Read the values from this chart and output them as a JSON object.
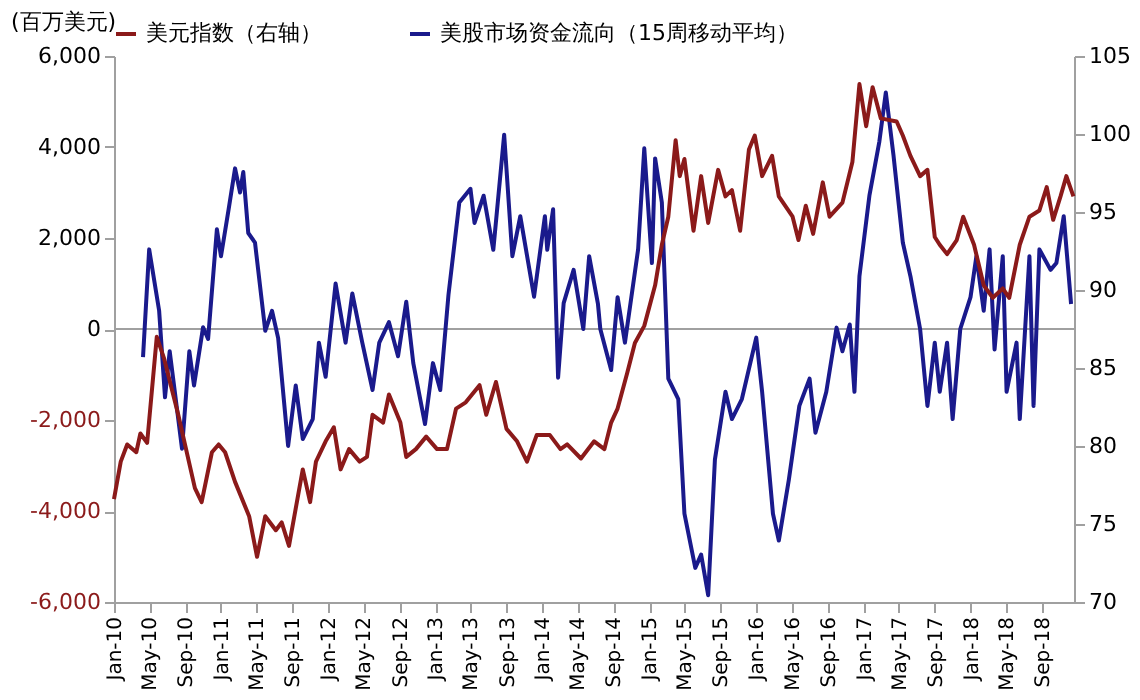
{
  "chart_data": {
    "type": "line",
    "ylabel": "(百万美元)",
    "legend": "top",
    "grid": false,
    "marker": "none",
    "line_style": "solid",
    "xlim": [
      "2010-01-01",
      "2018-12-20"
    ],
    "xticks": [
      {
        "value": "2010-01-01",
        "label": "Jan-10"
      },
      {
        "value": "2010-05-01",
        "label": "May-10"
      },
      {
        "value": "2010-09-01",
        "label": "Sep-10"
      },
      {
        "value": "2011-01-01",
        "label": "Jan-11"
      },
      {
        "value": "2011-05-01",
        "label": "May-11"
      },
      {
        "value": "2011-09-01",
        "label": "Sep-11"
      },
      {
        "value": "2012-01-01",
        "label": "Jan-12"
      },
      {
        "value": "2012-05-01",
        "label": "May-12"
      },
      {
        "value": "2012-09-01",
        "label": "Sep-12"
      },
      {
        "value": "2013-01-01",
        "label": "Jan-13"
      },
      {
        "value": "2013-05-01",
        "label": "May-13"
      },
      {
        "value": "2013-09-01",
        "label": "Sep-13"
      },
      {
        "value": "2014-01-01",
        "label": "Jan-14"
      },
      {
        "value": "2014-05-01",
        "label": "May-14"
      },
      {
        "value": "2014-09-01",
        "label": "Sep-14"
      },
      {
        "value": "2015-01-01",
        "label": "Jan-15"
      },
      {
        "value": "2015-05-01",
        "label": "May-15"
      },
      {
        "value": "2015-09-01",
        "label": "Sep-15"
      },
      {
        "value": "2016-01-01",
        "label": "Jan-16"
      },
      {
        "value": "2016-05-01",
        "label": "May-16"
      },
      {
        "value": "2016-09-01",
        "label": "Sep-16"
      },
      {
        "value": "2017-01-01",
        "label": "Jan-17"
      },
      {
        "value": "2017-05-01",
        "label": "May-17"
      },
      {
        "value": "2017-09-01",
        "label": "Sep-17"
      },
      {
        "value": "2018-01-01",
        "label": "Jan-18"
      },
      {
        "value": "2018-05-01",
        "label": "May-18"
      },
      {
        "value": "2018-09-01",
        "label": "Sep-18"
      }
    ],
    "ylim": [
      -6000,
      6000
    ],
    "yticks": [
      {
        "value": -6000,
        "label": "-6,000"
      },
      {
        "value": -4000,
        "label": "-4,000"
      },
      {
        "value": -2000,
        "label": "-2,000"
      },
      0,
      {
        "value": 2000,
        "label": "2,000"
      },
      {
        "value": 4000,
        "label": "4,000"
      },
      {
        "value": 6000,
        "label": "6,000"
      }
    ],
    "y2lim": [
      70,
      105
    ],
    "y2ticks": [
      70,
      75,
      80,
      85,
      90,
      95,
      100,
      105
    ],
    "ref_lines": [
      {
        "axis": "y",
        "value": 0,
        "color": "#a0a0a0"
      }
    ],
    "series": [
      {
        "name": "美元指数（右轴）",
        "color": "#8b1a1a",
        "axis": "y2",
        "x": [
          "2010-01-01",
          "2010-01-24",
          "2010-02-15",
          "2010-03-18",
          "2010-04-01",
          "2010-04-24",
          "2010-05-27",
          "2010-06-21",
          "2010-08-07",
          "2010-10-04",
          "2010-10-27",
          "2010-12-01",
          "2010-12-24",
          "2011-01-15",
          "2011-02-18",
          "2011-04-07",
          "2011-05-04",
          "2011-06-01",
          "2011-07-07",
          "2011-07-27",
          "2011-08-21",
          "2011-10-07",
          "2011-11-01",
          "2011-11-21",
          "2011-12-24",
          "2012-01-21",
          "2012-02-13",
          "2012-03-13",
          "2012-04-18",
          "2012-05-13",
          "2012-06-01",
          "2012-07-07",
          "2012-07-27",
          "2012-09-04",
          "2012-09-24",
          "2012-10-27",
          "2012-12-01",
          "2013-01-07",
          "2013-02-10",
          "2013-03-13",
          "2013-04-15",
          "2013-06-01",
          "2013-06-24",
          "2013-07-27",
          "2013-09-01",
          "2013-10-07",
          "2013-11-10",
          "2013-12-13",
          "2014-01-27",
          "2014-03-04",
          "2014-03-27",
          "2014-05-13",
          "2014-06-27",
          "2014-08-01",
          "2014-08-24",
          "2014-09-15",
          "2014-10-18",
          "2014-11-13",
          "2014-12-15",
          "2015-01-21",
          "2015-02-13",
          "2015-03-07",
          "2015-04-01",
          "2015-04-15",
          "2015-05-01",
          "2015-06-01",
          "2015-06-27",
          "2015-07-21",
          "2015-08-24",
          "2015-09-18",
          "2015-10-10",
          "2015-11-07",
          "2015-12-07",
          "2015-12-27",
          "2016-01-21",
          "2016-02-24",
          "2016-03-18",
          "2016-05-04",
          "2016-05-24",
          "2016-06-18",
          "2016-07-13",
          "2016-08-15",
          "2016-09-07",
          "2016-10-21",
          "2016-11-24",
          "2016-12-18",
          "2017-01-10",
          "2017-02-01",
          "2017-03-01",
          "2017-04-24",
          "2017-05-15",
          "2017-06-10",
          "2017-07-13",
          "2017-08-07",
          "2017-09-01",
          "2017-09-18",
          "2017-10-13",
          "2017-11-15",
          "2017-12-07",
          "2018-01-13",
          "2018-02-15",
          "2018-03-18",
          "2018-04-21",
          "2018-05-13",
          "2018-06-18",
          "2018-07-21",
          "2018-08-24",
          "2018-09-18",
          "2018-10-10",
          "2018-11-04",
          "2018-11-24",
          "2018-12-18"
        ],
        "values": [
          76.6,
          79.0,
          80.1,
          79.6,
          80.8,
          80.2,
          87.0,
          85.6,
          82.1,
          77.3,
          76.4,
          79.6,
          80.1,
          79.6,
          77.7,
          75.5,
          72.9,
          75.5,
          74.6,
          75.1,
          73.6,
          78.5,
          76.4,
          79.0,
          80.3,
          81.2,
          78.5,
          79.8,
          79.0,
          79.3,
          82.0,
          81.5,
          83.3,
          81.5,
          79.3,
          79.8,
          80.6,
          79.8,
          79.8,
          82.4,
          82.8,
          83.9,
          82.0,
          84.1,
          81.1,
          80.3,
          79.0,
          80.7,
          80.7,
          79.8,
          80.1,
          79.2,
          80.3,
          79.8,
          81.5,
          82.4,
          84.7,
          86.6,
          87.7,
          90.3,
          92.9,
          94.7,
          99.6,
          97.3,
          98.4,
          93.8,
          97.3,
          94.3,
          97.7,
          96.0,
          96.4,
          93.8,
          99.0,
          99.9,
          97.3,
          98.6,
          96.0,
          94.7,
          93.2,
          95.4,
          93.6,
          96.9,
          94.7,
          95.6,
          98.2,
          103.2,
          100.5,
          103.0,
          101.0,
          100.8,
          99.9,
          98.6,
          97.3,
          97.7,
          93.4,
          92.9,
          92.3,
          93.2,
          94.7,
          92.9,
          90.3,
          89.5,
          90.1,
          89.5,
          92.9,
          94.7,
          95.1,
          96.6,
          94.5,
          96.0,
          97.3,
          96.0
        ]
      },
      {
        "name": "美股市场资金流向（15周移动平均）",
        "color": "#1a1a8c",
        "axis": "y",
        "x": [
          "2010-04-10",
          "2010-05-01",
          "2010-06-04",
          "2010-06-24",
          "2010-07-10",
          "2010-08-21",
          "2010-09-15",
          "2010-10-01",
          "2010-11-01",
          "2010-11-18",
          "2010-12-18",
          "2011-01-01",
          "2011-01-27",
          "2011-02-18",
          "2011-03-07",
          "2011-03-18",
          "2011-04-04",
          "2011-04-27",
          "2011-06-01",
          "2011-06-24",
          "2011-07-15",
          "2011-08-18",
          "2011-09-13",
          "2011-10-07",
          "2011-11-10",
          "2011-12-01",
          "2011-12-24",
          "2012-01-27",
          "2012-03-01",
          "2012-03-24",
          "2012-04-27",
          "2012-06-01",
          "2012-06-24",
          "2012-07-27",
          "2012-08-27",
          "2012-09-24",
          "2012-10-18",
          "2012-11-27",
          "2012-12-24",
          "2013-01-18",
          "2013-02-15",
          "2013-03-24",
          "2013-05-01",
          "2013-05-15",
          "2013-06-15",
          "2013-07-18",
          "2013-08-24",
          "2013-09-21",
          "2013-10-18",
          "2013-12-04",
          "2014-01-10",
          "2014-01-18",
          "2014-02-07",
          "2014-02-24",
          "2014-03-15",
          "2014-04-18",
          "2014-05-21",
          "2014-06-10",
          "2014-07-10",
          "2014-07-18",
          "2014-08-24",
          "2014-09-15",
          "2014-10-10",
          "2014-11-24",
          "2014-12-15",
          "2015-01-10",
          "2015-01-21",
          "2015-02-13",
          "2015-03-07",
          "2015-04-10",
          "2015-05-01",
          "2015-06-07",
          "2015-06-27",
          "2015-07-21",
          "2015-08-13",
          "2015-09-18",
          "2015-10-10",
          "2015-11-13",
          "2016-01-01",
          "2016-01-21",
          "2016-02-27",
          "2016-03-18",
          "2016-04-21",
          "2016-05-27",
          "2016-07-01",
          "2016-07-21",
          "2016-08-27",
          "2016-10-01",
          "2016-10-21",
          "2016-11-15",
          "2016-12-01",
          "2016-12-18",
          "2017-01-21",
          "2017-02-24",
          "2017-03-18",
          "2017-04-13",
          "2017-05-15",
          "2017-06-10",
          "2017-07-13",
          "2017-08-07",
          "2017-09-01",
          "2017-09-18",
          "2017-10-13",
          "2017-11-01",
          "2017-11-27",
          "2018-01-01",
          "2018-01-21",
          "2018-02-15",
          "2018-03-07",
          "2018-03-24",
          "2018-04-21",
          "2018-05-04",
          "2018-06-07",
          "2018-06-18",
          "2018-07-21",
          "2018-08-04",
          "2018-08-24",
          "2018-10-01",
          "2018-10-21",
          "2018-11-15",
          "2018-12-10"
        ],
        "values": [
          -620,
          1750,
          400,
          -1500,
          -490,
          -2630,
          -490,
          -1240,
          40,
          -220,
          2190,
          1600,
          2630,
          3530,
          3000,
          3450,
          2110,
          1900,
          -40,
          400,
          -200,
          -2570,
          -1240,
          -2420,
          -1980,
          -300,
          -1050,
          1000,
          -300,
          780,
          -300,
          -1340,
          -300,
          150,
          -600,
          600,
          -750,
          -2090,
          -750,
          -1340,
          750,
          2780,
          3080,
          2330,
          2930,
          1740,
          4270,
          1600,
          2480,
          710,
          2480,
          1740,
          2630,
          -1070,
          570,
          1300,
          0,
          1600,
          550,
          0,
          -900,
          700,
          -300,
          1750,
          3970,
          1450,
          3750,
          2780,
          -1090,
          -1540,
          -4060,
          -5250,
          -4960,
          -5850,
          -2870,
          -1380,
          -1980,
          -1540,
          -190,
          -1380,
          -4060,
          -4650,
          -3320,
          -1690,
          -1090,
          -2280,
          -1380,
          30,
          -490,
          100,
          -1380,
          1160,
          2930,
          4120,
          5200,
          3830,
          1900,
          1160,
          0,
          -1690,
          -300,
          -1380,
          -300,
          -1980,
          0,
          700,
          1600,
          400,
          1750,
          -450,
          1600,
          -1380,
          -300,
          -1980,
          1600,
          -1690,
          1750,
          1300,
          1450,
          2480,
          550
        ]
      }
    ]
  }
}
